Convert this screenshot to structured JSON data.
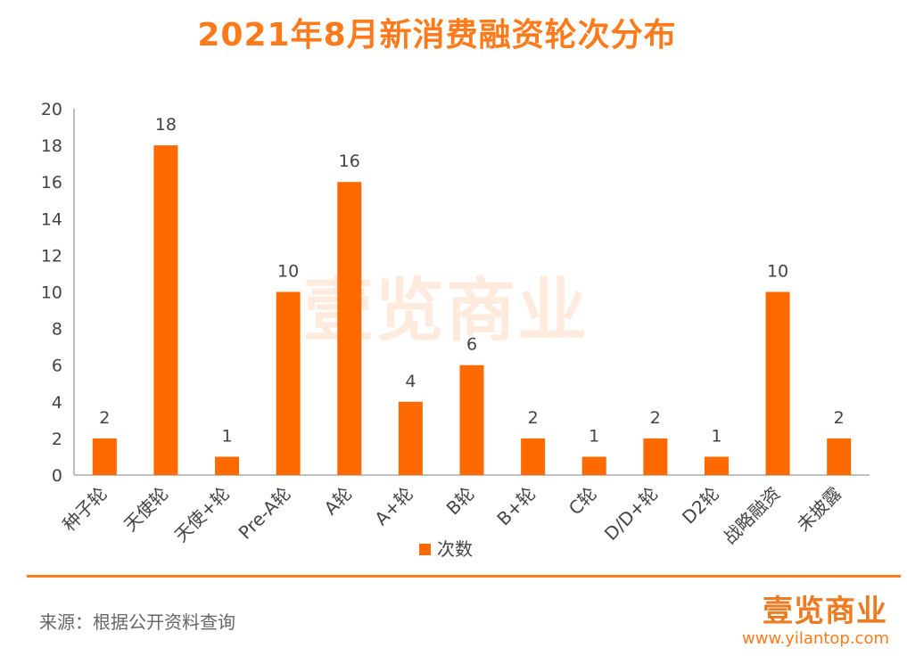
{
  "title": "2021年8月新消费融资轮次分布",
  "watermark": "壹览商业",
  "source": "来源：根据公开资料查询",
  "brand": {
    "logo": "壹览商业",
    "site": "www.yilantop.com"
  },
  "colors": {
    "bar": "#ff6a00",
    "accent": "#ff7a1a"
  },
  "chart_data": {
    "type": "bar",
    "title": "2021年8月新消费融资轮次分布",
    "xlabel": "",
    "ylabel": "",
    "ylim": [
      0,
      20
    ],
    "yticks": [
      0,
      2,
      4,
      6,
      8,
      10,
      12,
      14,
      16,
      18,
      20
    ],
    "grid": false,
    "legend_position": "bottom",
    "categories": [
      "种子轮",
      "天使轮",
      "天使+轮",
      "Pre-A轮",
      "A轮",
      "A+轮",
      "B轮",
      "B+轮",
      "C轮",
      "D/D+轮",
      "D2轮",
      "战略融资",
      "未披露"
    ],
    "series": [
      {
        "name": "次数",
        "values": [
          2,
          18,
          1,
          10,
          16,
          4,
          6,
          2,
          1,
          2,
          1,
          10,
          2
        ]
      }
    ]
  }
}
